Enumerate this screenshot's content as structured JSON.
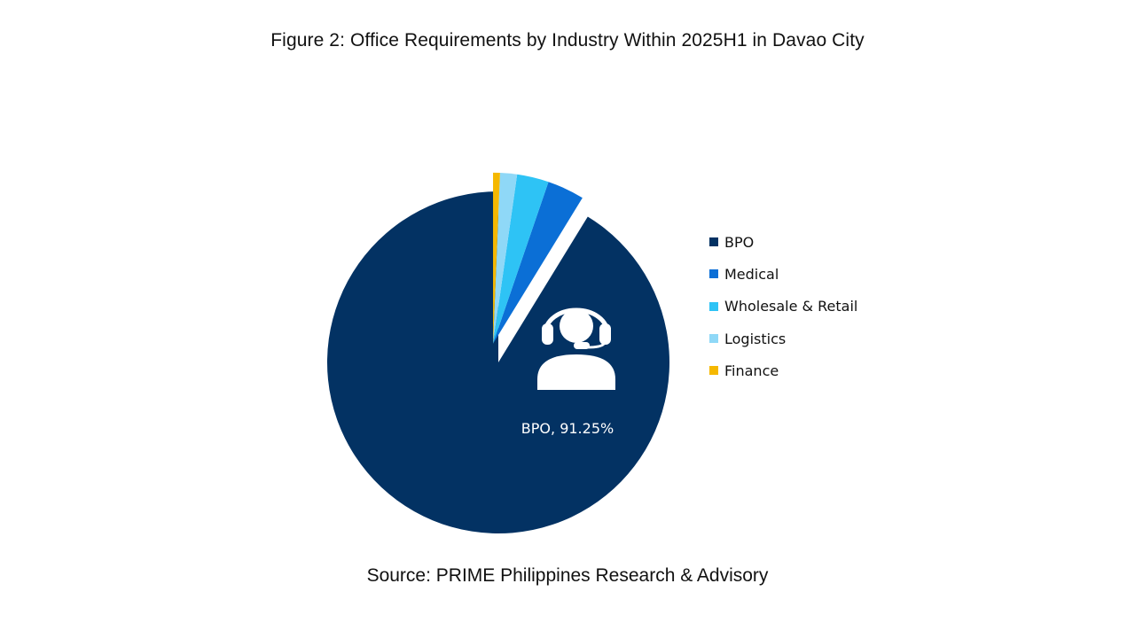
{
  "title": "Figure 2: Office Requirements by Industry Within 2025H1 in Davao City",
  "source": "Source: PRIME Philippines Research & Advisory",
  "icon": "headset-person-icon",
  "chart_data": {
    "type": "pie",
    "title": "Figure 2: Office Requirements by Industry Within 2025H1 in Davao City",
    "labels": [
      "BPO",
      "Medical",
      "Wholesale & Retail",
      "Logistics",
      "Finance"
    ],
    "values": [
      91.25,
      3.5,
      3.0,
      1.6,
      0.65
    ],
    "colors": [
      "#033263",
      "#0b6fd6",
      "#2ec3f5",
      "#8fd8f7",
      "#f5b800"
    ],
    "data_labels": [
      "BPO, 91.25%"
    ],
    "exploded": [
      "Medical",
      "Wholesale & Retail",
      "Logistics",
      "Finance"
    ],
    "legend_position": "right"
  }
}
